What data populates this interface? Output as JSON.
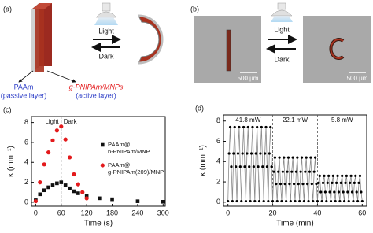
{
  "figure": {
    "panel_a": {
      "label": "(a)",
      "light": "Light",
      "dark": "Dark",
      "passive_name": "PAAm",
      "passive_desc": "(passive layer)",
      "active_name": "g-PNIPAm/MNPs",
      "active_desc": "(active layer)"
    },
    "panel_b": {
      "label": "(b)",
      "light": "Light",
      "dark": "Dark",
      "scale_left": "500 μm",
      "scale_right": "500 μm"
    }
  },
  "chart_data": [
    {
      "type": "scatter",
      "panel_label": "(c)",
      "xlabel": "Time (s)",
      "ylabel": "κ (mm⁻¹)",
      "xlim": [
        -10,
        305
      ],
      "ylim": [
        -0.4,
        8.6
      ],
      "xticks": [
        0,
        60,
        120,
        180,
        240,
        300
      ],
      "yticks": [
        0,
        2,
        4,
        6,
        8
      ],
      "phase_boundaries": [
        60
      ],
      "annotations": [
        "Light",
        "Dark"
      ],
      "series": [
        {
          "name": "PAAm@\nn-PNIPAm/MNP",
          "color": "#111111",
          "marker": "square",
          "x": [
            0,
            10,
            20,
            30,
            40,
            50,
            60,
            70,
            80,
            90,
            100,
            120,
            150,
            180,
            240,
            300
          ],
          "values": [
            0.2,
            0.8,
            1.2,
            1.5,
            1.7,
            1.9,
            2.0,
            1.7,
            1.4,
            1.1,
            0.9,
            0.6,
            0.4,
            0.3,
            0.1,
            0.05
          ]
        },
        {
          "name": "PAAm@\ng-PNIPAm(209)/MNP",
          "color": "#e31a1c",
          "marker": "circle",
          "x": [
            0,
            10,
            20,
            30,
            40,
            50,
            60,
            70,
            80,
            90,
            100,
            110,
            120
          ],
          "values": [
            0.1,
            2.0,
            3.8,
            5.0,
            6.2,
            7.2,
            7.6,
            6.3,
            4.5,
            2.8,
            1.8,
            1.0,
            0.4
          ]
        }
      ]
    },
    {
      "type": "line",
      "panel_label": "(d)",
      "xlabel": "Time (min)",
      "ylabel": "κ (mm⁻¹)",
      "xlim": [
        -2,
        62
      ],
      "ylim": [
        -0.4,
        8.6
      ],
      "xticks": [
        0,
        20,
        40,
        60
      ],
      "yticks": [
        0,
        2,
        4,
        6,
        8
      ],
      "phase_boundaries": [
        20,
        40
      ],
      "annotations": [
        "41.8 mW",
        "22.1 mW",
        "5.8 mW"
      ],
      "series": [
        {
          "color": "#000000",
          "line_color": "#8a8a8a",
          "marker": "circle",
          "x": [
            0,
            0.5,
            1,
            1.5,
            2,
            2.5,
            3,
            3.5,
            4,
            4.5,
            5,
            5.5,
            6,
            6.5,
            7,
            7.5,
            8,
            8.5,
            9,
            9.5,
            10,
            10.5,
            11,
            11.5,
            12,
            12.5,
            13,
            13.5,
            14,
            14.5,
            15,
            15.5,
            16,
            16.5,
            17,
            17.5,
            18,
            18.5,
            19,
            19.5,
            20,
            20.5,
            21,
            21.5,
            22,
            22.5,
            23,
            23.5,
            24,
            24.5,
            25,
            25.5,
            26,
            26.5,
            27,
            27.5,
            28,
            28.5,
            29,
            29.5,
            30,
            30.5,
            31,
            31.5,
            32,
            32.5,
            33,
            33.5,
            34,
            34.5,
            35,
            35.5,
            36,
            36.5,
            37,
            37.5,
            38,
            38.5,
            39,
            39.5,
            40,
            40.5,
            41,
            41.5,
            42,
            42.5,
            43,
            43.5,
            44,
            44.5,
            45,
            45.5,
            46,
            46.5,
            47,
            47.5,
            48,
            48.5,
            49,
            49.5,
            50,
            50.5,
            51,
            51.5,
            52,
            52.5,
            53,
            53.5,
            54,
            54.5,
            55,
            55.5,
            56,
            56.5,
            57,
            57.5,
            58,
            58.5,
            59,
            59.5,
            60
          ],
          "values": [
            0.1,
            4.8,
            7.4,
            3.5,
            0.1,
            4.8,
            7.4,
            3.5,
            0.1,
            4.8,
            7.4,
            3.5,
            0.1,
            4.8,
            7.4,
            3.5,
            0.1,
            4.8,
            7.4,
            3.5,
            0.1,
            4.8,
            7.4,
            3.5,
            0.1,
            4.8,
            7.4,
            3.5,
            0.1,
            4.8,
            7.4,
            3.5,
            0.1,
            4.8,
            7.4,
            3.5,
            0.1,
            4.8,
            7.4,
            3.5,
            0.1,
            3.0,
            4.4,
            1.8,
            0.1,
            3.0,
            4.4,
            1.8,
            0.1,
            3.0,
            4.4,
            1.8,
            0.1,
            3.0,
            4.4,
            1.8,
            0.1,
            3.0,
            4.4,
            1.8,
            0.1,
            3.0,
            4.4,
            1.8,
            0.1,
            3.0,
            4.4,
            1.8,
            0.1,
            3.0,
            4.4,
            1.8,
            0.1,
            3.0,
            4.4,
            1.8,
            0.1,
            3.0,
            4.4,
            1.8,
            0.1,
            1.9,
            2.6,
            1.0,
            0.1,
            1.9,
            2.6,
            1.0,
            0.1,
            1.9,
            2.6,
            1.0,
            0.1,
            1.9,
            2.6,
            1.0,
            0.1,
            1.9,
            2.6,
            1.0,
            0.1,
            1.9,
            2.6,
            1.0,
            0.1,
            1.9,
            2.6,
            1.0,
            0.1,
            1.9,
            2.6,
            1.0,
            0.1,
            1.9,
            2.6,
            1.0,
            0.1,
            1.9,
            2.6,
            1.0,
            0.1
          ]
        }
      ]
    }
  ]
}
